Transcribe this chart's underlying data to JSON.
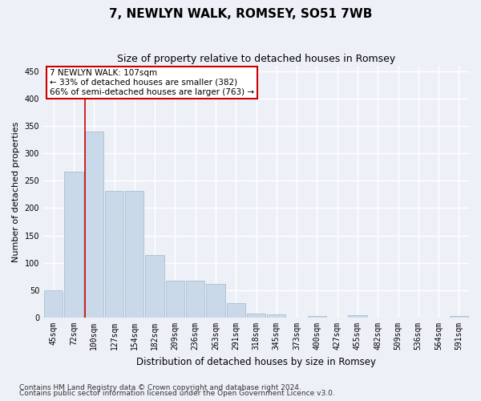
{
  "title": "7, NEWLYN WALK, ROMSEY, SO51 7WB",
  "subtitle": "Size of property relative to detached houses in Romsey",
  "xlabel": "Distribution of detached houses by size in Romsey",
  "ylabel": "Number of detached properties",
  "bar_labels": [
    "45sqm",
    "72sqm",
    "100sqm",
    "127sqm",
    "154sqm",
    "182sqm",
    "209sqm",
    "236sqm",
    "263sqm",
    "291sqm",
    "318sqm",
    "345sqm",
    "373sqm",
    "400sqm",
    "427sqm",
    "455sqm",
    "482sqm",
    "509sqm",
    "536sqm",
    "564sqm",
    "591sqm"
  ],
  "bar_values": [
    50,
    267,
    340,
    231,
    231,
    114,
    68,
    68,
    62,
    26,
    7,
    6,
    0,
    3,
    0,
    4,
    0,
    0,
    0,
    0,
    3
  ],
  "bar_color": "#c9d9ea",
  "bar_edgecolor": "#a8bfcf",
  "vline_color": "#cc0000",
  "annotation_line1": "7 NEWLYN WALK: 107sqm",
  "annotation_line2": "← 33% of detached houses are smaller (382)",
  "annotation_line3": "66% of semi-detached houses are larger (763) →",
  "annotation_box_edgecolor": "#cc0000",
  "ylim": [
    0,
    460
  ],
  "yticks": [
    0,
    50,
    100,
    150,
    200,
    250,
    300,
    350,
    400,
    450
  ],
  "footnote1": "Contains HM Land Registry data © Crown copyright and database right 2024.",
  "footnote2": "Contains public sector information licensed under the Open Government Licence v3.0.",
  "background_color": "#edf1f7",
  "plot_background_color": "#edf1f7",
  "grid_color": "#ffffff",
  "title_fontsize": 11,
  "subtitle_fontsize": 9,
  "xlabel_fontsize": 8.5,
  "ylabel_fontsize": 8,
  "tick_fontsize": 7,
  "annotation_fontsize": 7.5,
  "footnote_fontsize": 6.5
}
